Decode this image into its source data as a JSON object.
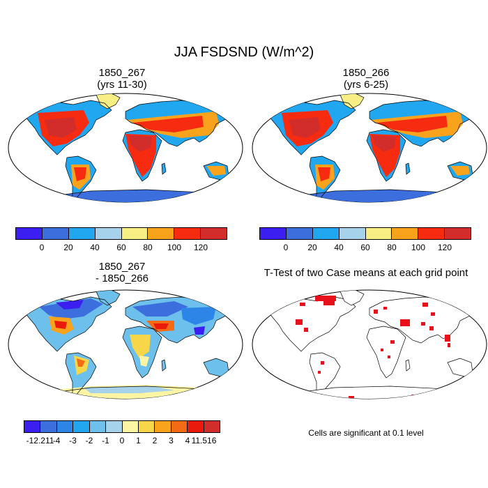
{
  "main_title": "JJA FSDSND (W/m^2)",
  "panels": [
    {
      "title_line1": "1850_267",
      "title_line2": "(yrs 11-30)"
    },
    {
      "title_line1": "1850_266",
      "title_line2": "(yrs 6-25)"
    },
    {
      "title_line1": "1850_267",
      "title_line2": "- 1850_266"
    },
    {
      "title_line1": "T-Test of two Case means at each grid point"
    }
  ],
  "colorbar_abs": {
    "colors": [
      "#3a1ff0",
      "#3c6ede",
      "#21a7f0",
      "#a6d2eb",
      "#f7ef84",
      "#f9a21b",
      "#f72b10",
      "#d22d2b"
    ],
    "labels": [
      "0",
      "20",
      "40",
      "60",
      "80",
      "100",
      "120"
    ]
  },
  "colorbar_diff": {
    "colors": [
      "#3a1ff0",
      "#3c6ede",
      "#2e85e8",
      "#21a7f0",
      "#6cc0eb",
      "#a6d2eb",
      "#fdf5a4",
      "#f7d64a",
      "#f9a21b",
      "#f56a15",
      "#ea1b0c",
      "#d22d2b"
    ],
    "labels": [
      "-12.211",
      "-4",
      "-3",
      "-2",
      "-1",
      "0",
      "1",
      "2",
      "3",
      "4",
      "11.516"
    ]
  },
  "significance_note": "Cells are significant at 0.1 level",
  "significance_color": "#e8101a"
}
